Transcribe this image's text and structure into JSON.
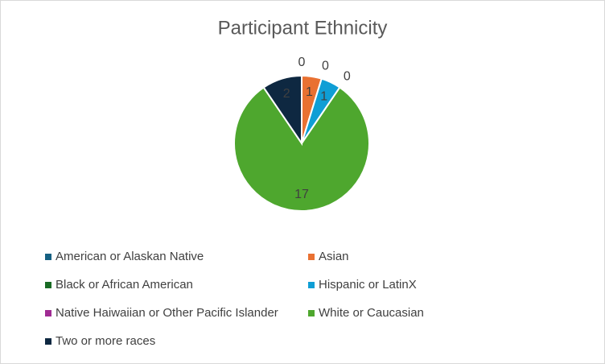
{
  "chart_data": {
    "type": "pie",
    "title": "Participant Ethnicity",
    "categories": [
      "American or Alaskan Native",
      "Asian",
      "Black or African American",
      "Hispanic or LatinX",
      "Native Haiwaiian or Other Pacific Islander",
      "White or Caucasian",
      "Two or more races"
    ],
    "values": [
      0,
      1,
      0,
      1,
      0,
      17,
      2
    ],
    "colors": [
      "#156082",
      "#e97132",
      "#196b24",
      "#0f9ed5",
      "#a02b93",
      "#4ea72e",
      "#0e2841"
    ],
    "legend": "bottom"
  }
}
